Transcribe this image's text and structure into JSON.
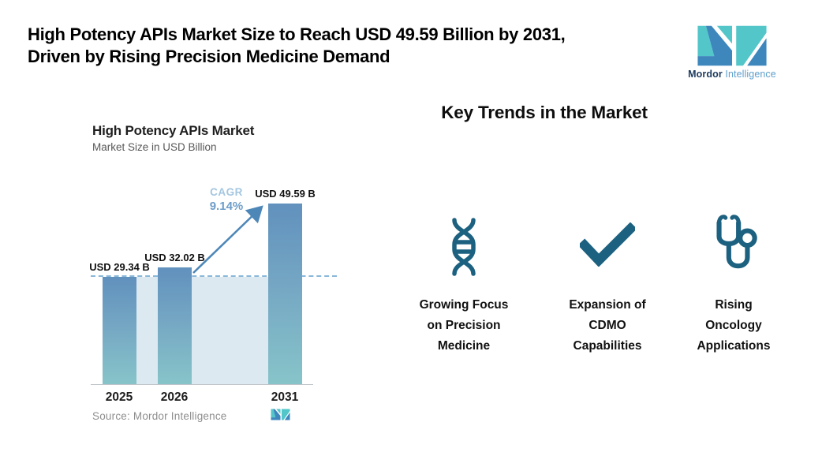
{
  "header": {
    "title_line1": "High Potency APIs Market Size to Reach USD 49.59 Billion by 2031,",
    "title_line2": "Driven by Rising Precision Medicine Demand"
  },
  "brand": {
    "name_bold": "Mordor",
    "name_light": "Intelligence"
  },
  "chart": {
    "title": "High Potency APIs Market",
    "subtitle": "Market Size in USD Billion",
    "cagr_label": "CAGR",
    "cagr_value": "9.14%",
    "source": "Source: Mordor Intelligence"
  },
  "chart_data": {
    "type": "bar",
    "categories": [
      "2025",
      "2026",
      "2031"
    ],
    "values": [
      29.34,
      32.02,
      49.59
    ],
    "value_labels": [
      "USD 29.34 B",
      "USD 32.02 B",
      "USD 49.59 B"
    ],
    "title": "High Potency APIs Market",
    "subtitle": "Market Size in USD Billion",
    "xlabel": "",
    "ylabel": "Market Size in USD Billion",
    "ylim": [
      0,
      52
    ],
    "grid": false,
    "reference_line": {
      "value": 29.34,
      "style": "dashed"
    },
    "annotations": [
      {
        "text": "CAGR 9.14%",
        "type": "growth-arrow",
        "from": "2026",
        "to": "2031"
      }
    ]
  },
  "trends": {
    "heading": "Key Trends in the Market",
    "items": [
      {
        "icon": "dna-icon",
        "label": "Growing Focus on Precision Medicine",
        "lines": [
          "Growing Focus",
          "on Precision",
          "Medicine"
        ]
      },
      {
        "icon": "check-icon",
        "label": "Expansion of CDMO Capabilities",
        "lines": [
          "Expansion of",
          "CDMO",
          "Capabilities"
        ]
      },
      {
        "icon": "stethoscope-icon",
        "label": "Rising Oncology Applications",
        "lines": [
          "Rising",
          "Oncology",
          "Applications"
        ]
      }
    ]
  },
  "colors": {
    "logo_teal": "#52c6c9",
    "logo_blue": "#3d87bd",
    "wordmark_dark": "#1c3a5e",
    "wordmark_light": "#5f9fcc",
    "icon_dark_teal": "#1d6180",
    "bar_gradient_top": "#6191bd",
    "bar_gradient_bottom": "#87c4c9",
    "baseline_band": "#dde9f1",
    "dashed_line": "#8ab8da",
    "cagr_label": "#a3c6e0",
    "cagr_value": "#6d9dc9",
    "arrow": "#4d87b8",
    "source_text": "#8e8e8e"
  }
}
